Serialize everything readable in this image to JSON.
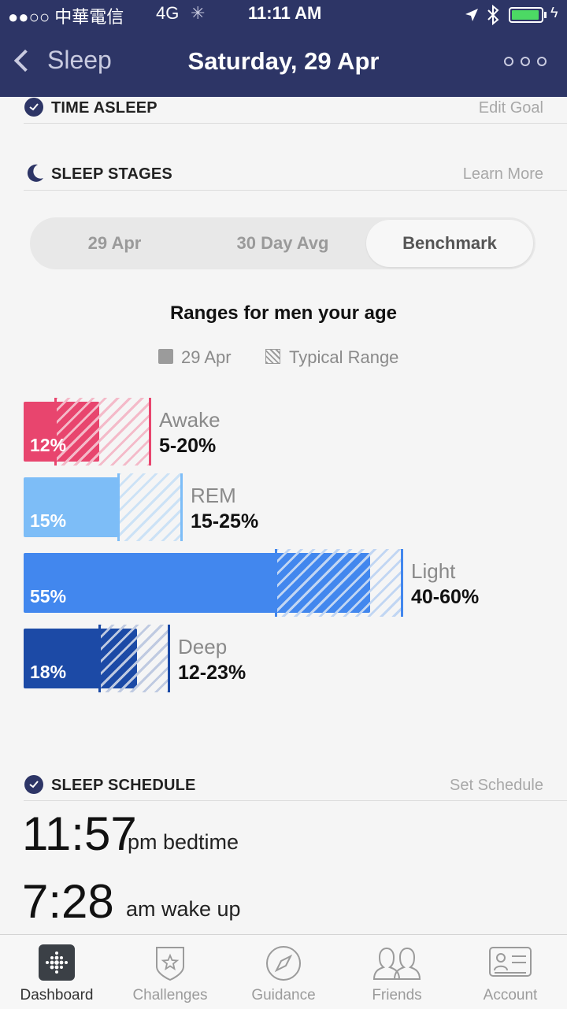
{
  "status_bar": {
    "carrier": "●●○○ 中華電信",
    "network": "4G",
    "time": "11:11 AM"
  },
  "nav": {
    "back_label": "Sleep",
    "title": "Saturday, 29 Apr"
  },
  "time_asleep": {
    "title": "TIME ASLEEP",
    "link": "Edit Goal"
  },
  "sleep_stages": {
    "title": "SLEEP STAGES",
    "link": "Learn More",
    "segments": [
      "29 Apr",
      "30 Day Avg",
      "Benchmark"
    ],
    "selected_segment": "Benchmark",
    "subtitle": "Ranges for men your age",
    "legend": {
      "actual": "29 Apr",
      "typical": "Typical Range"
    },
    "stages": [
      {
        "name": "Awake",
        "value_label": "12%",
        "value": 12,
        "range_label": "5-20%",
        "range": [
          5,
          20
        ],
        "color": "#e8456e",
        "hatch": "#f0a0b4"
      },
      {
        "name": "REM",
        "value_label": "15%",
        "value": 15,
        "range_label": "15-25%",
        "range": [
          15,
          25
        ],
        "color": "#7dbdf7",
        "hatch": "#b9d7f2"
      },
      {
        "name": "Light",
        "value_label": "55%",
        "value": 55,
        "range_label": "40-60%",
        "range": [
          40,
          60
        ],
        "color": "#4287ee",
        "hatch": "#a9c6ee"
      },
      {
        "name": "Deep",
        "value_label": "18%",
        "value": 18,
        "range_label": "12-23%",
        "range": [
          12,
          23
        ],
        "color": "#1c4aa6",
        "hatch": "#a6b6d6"
      }
    ]
  },
  "sleep_schedule": {
    "title": "SLEEP SCHEDULE",
    "link": "Set Schedule",
    "bedtime": {
      "time": "11:57",
      "label": "pm bedtime"
    },
    "wakeup": {
      "time": "7:28",
      "label": "am wake up"
    }
  },
  "tabs": [
    {
      "label": "Dashboard",
      "icon": "dashboard-icon",
      "active": true
    },
    {
      "label": "Challenges",
      "icon": "challenges-star-icon",
      "active": false
    },
    {
      "label": "Guidance",
      "icon": "compass-icon",
      "active": false
    },
    {
      "label": "Friends",
      "icon": "friends-icon",
      "active": false
    },
    {
      "label": "Account",
      "icon": "account-card-icon",
      "active": false
    }
  ],
  "colors": {
    "nav_bg": "#2d3566",
    "battery": "#4cd964"
  }
}
